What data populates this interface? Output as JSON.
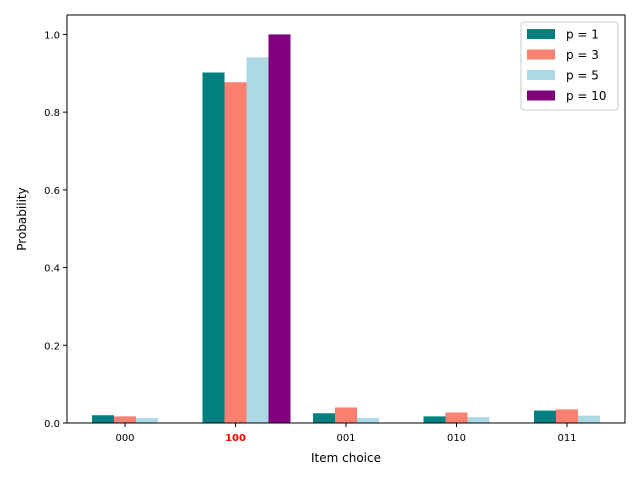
{
  "chart_data": {
    "type": "bar",
    "xlabel": "Item choice",
    "ylabel": "Probability",
    "ylim": [
      0,
      1.05
    ],
    "yticks": [
      "0.0",
      "0.2",
      "0.4",
      "0.6",
      "0.8",
      "1.0"
    ],
    "categories": [
      "000",
      "100",
      "001",
      "010",
      "011"
    ],
    "highlighted_category": "100",
    "highlight_color": "#ff0000",
    "grid": false,
    "legend_position": "top-right",
    "series": [
      {
        "name": "p = 1",
        "color": "#008080",
        "values": [
          0.02,
          0.902,
          0.025,
          0.017,
          0.032
        ]
      },
      {
        "name": "p = 3",
        "color": "#fa8072",
        "values": [
          0.017,
          0.877,
          0.04,
          0.027,
          0.035
        ]
      },
      {
        "name": "p = 5",
        "color": "#add8e6",
        "values": [
          0.013,
          0.941,
          0.013,
          0.015,
          0.019
        ]
      },
      {
        "name": "p = 10",
        "color": "#800080",
        "values": [
          0.0,
          1.0,
          0.0,
          0.0,
          0.0
        ]
      }
    ]
  }
}
